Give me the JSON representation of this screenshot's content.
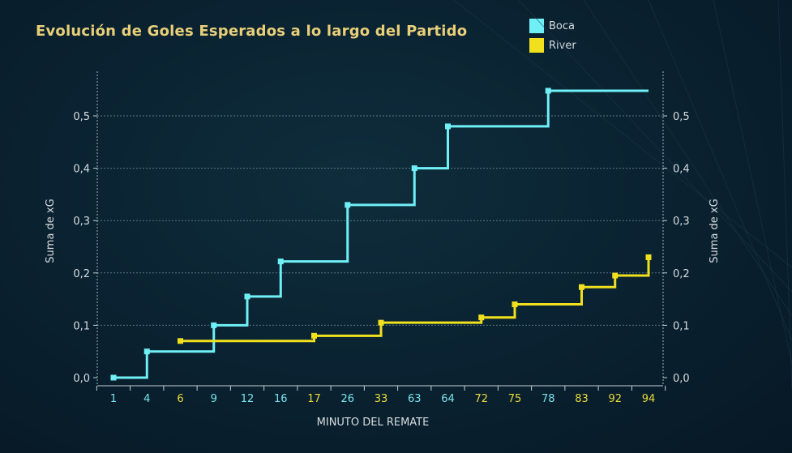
{
  "chart_data": {
    "type": "line",
    "title": "Evolución de Goles Esperados a lo largo del Partido",
    "xlabel": "MINUTO DEL REMATE",
    "ylabel": "Suma de xG",
    "ylim": [
      0,
      0.58
    ],
    "yticks": [
      0.0,
      0.1,
      0.2,
      0.3,
      0.4,
      0.5
    ],
    "ytick_labels": [
      "0,0",
      "0,1",
      "0,2",
      "0,3",
      "0,4",
      "0,5"
    ],
    "categories": [
      "1",
      "4",
      "6",
      "9",
      "12",
      "16",
      "17",
      "26",
      "33",
      "63",
      "64",
      "72",
      "75",
      "78",
      "83",
      "92",
      "94"
    ],
    "category_colors": [
      "#79e4ee",
      "#79e4ee",
      "#e9d93a",
      "#79e4ee",
      "#79e4ee",
      "#79e4ee",
      "#e9d93a",
      "#79e4ee",
      "#e9d93a",
      "#79e4ee",
      "#79e4ee",
      "#e9d93a",
      "#e9d93a",
      "#79e4ee",
      "#e9d93a",
      "#e9d93a",
      "#e9d93a"
    ],
    "grid": true,
    "legend_position": "top-right",
    "series": [
      {
        "name": "Boca",
        "color": "#6ff0f6",
        "x": [
          "1",
          "4",
          "9",
          "12",
          "16",
          "26",
          "63",
          "64",
          "78",
          "94"
        ],
        "y": [
          0.0,
          0.05,
          0.1,
          0.155,
          0.222,
          0.33,
          0.4,
          0.48,
          0.548,
          0.548
        ],
        "markers": [
          true,
          true,
          true,
          true,
          true,
          true,
          true,
          true,
          true,
          false
        ]
      },
      {
        "name": "River",
        "color": "#f1e01e",
        "x": [
          "6",
          "17",
          "33",
          "72",
          "75",
          "83",
          "92",
          "94"
        ],
        "y": [
          0.07,
          0.08,
          0.105,
          0.115,
          0.14,
          0.173,
          0.195,
          0.23
        ],
        "markers": [
          true,
          true,
          true,
          true,
          true,
          true,
          true,
          true
        ]
      }
    ]
  }
}
